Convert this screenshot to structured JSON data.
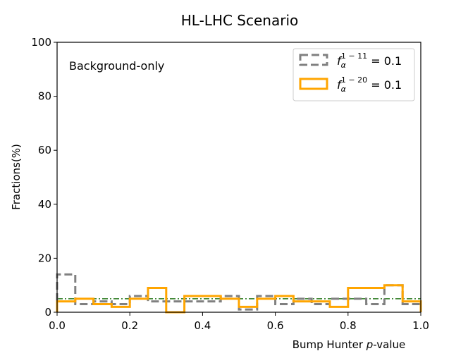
{
  "chart_data": {
    "type": "step-histogram",
    "title": "HL-LHC Scenario",
    "xlabel_prefix": "Bump Hunter ",
    "xlabel_italic": "p",
    "xlabel_suffix": "-value",
    "ylabel": "Fractions(%)",
    "xlim": [
      0.0,
      1.0
    ],
    "ylim": [
      0,
      100
    ],
    "xticks": [
      0.0,
      0.2,
      0.4,
      0.6,
      0.8,
      1.0
    ],
    "xtick_labels": [
      "0.0",
      "0.2",
      "0.4",
      "0.6",
      "0.8",
      "1.0"
    ],
    "yticks": [
      0,
      20,
      40,
      60,
      80,
      100
    ],
    "ytick_labels": [
      "0",
      "20",
      "40",
      "60",
      "80",
      "100"
    ],
    "bin_edges": [
      0.0,
      0.05,
      0.1,
      0.15,
      0.2,
      0.25,
      0.3,
      0.35,
      0.4,
      0.45,
      0.5,
      0.55,
      0.6,
      0.65,
      0.7,
      0.75,
      0.8,
      0.85,
      0.9,
      0.95,
      1.0
    ],
    "annotation": "Background-only",
    "reference_line": {
      "y": 5,
      "color": "#2a7a1f",
      "style": "dash-dot"
    },
    "legend_position": "upper right",
    "series": [
      {
        "legend_f": "f",
        "legend_sub": "α",
        "legend_sup": "1 − 11",
        "legend_value": " = 0.1",
        "color": "#808080",
        "style": "dashed",
        "values": [
          14,
          3,
          4,
          3,
          6,
          4,
          4,
          4,
          4,
          6,
          1,
          6,
          3,
          5,
          3,
          5,
          5,
          3,
          10,
          3
        ]
      },
      {
        "legend_f": "f",
        "legend_sub": "α",
        "legend_sup": "1 − 20",
        "legend_value": " = 0.1",
        "color": "#FFA500",
        "style": "solid",
        "values": [
          4,
          5,
          3,
          2,
          5,
          9,
          0,
          6,
          6,
          5,
          2,
          5,
          6,
          4,
          4,
          2,
          9,
          9,
          10,
          4
        ]
      }
    ]
  }
}
